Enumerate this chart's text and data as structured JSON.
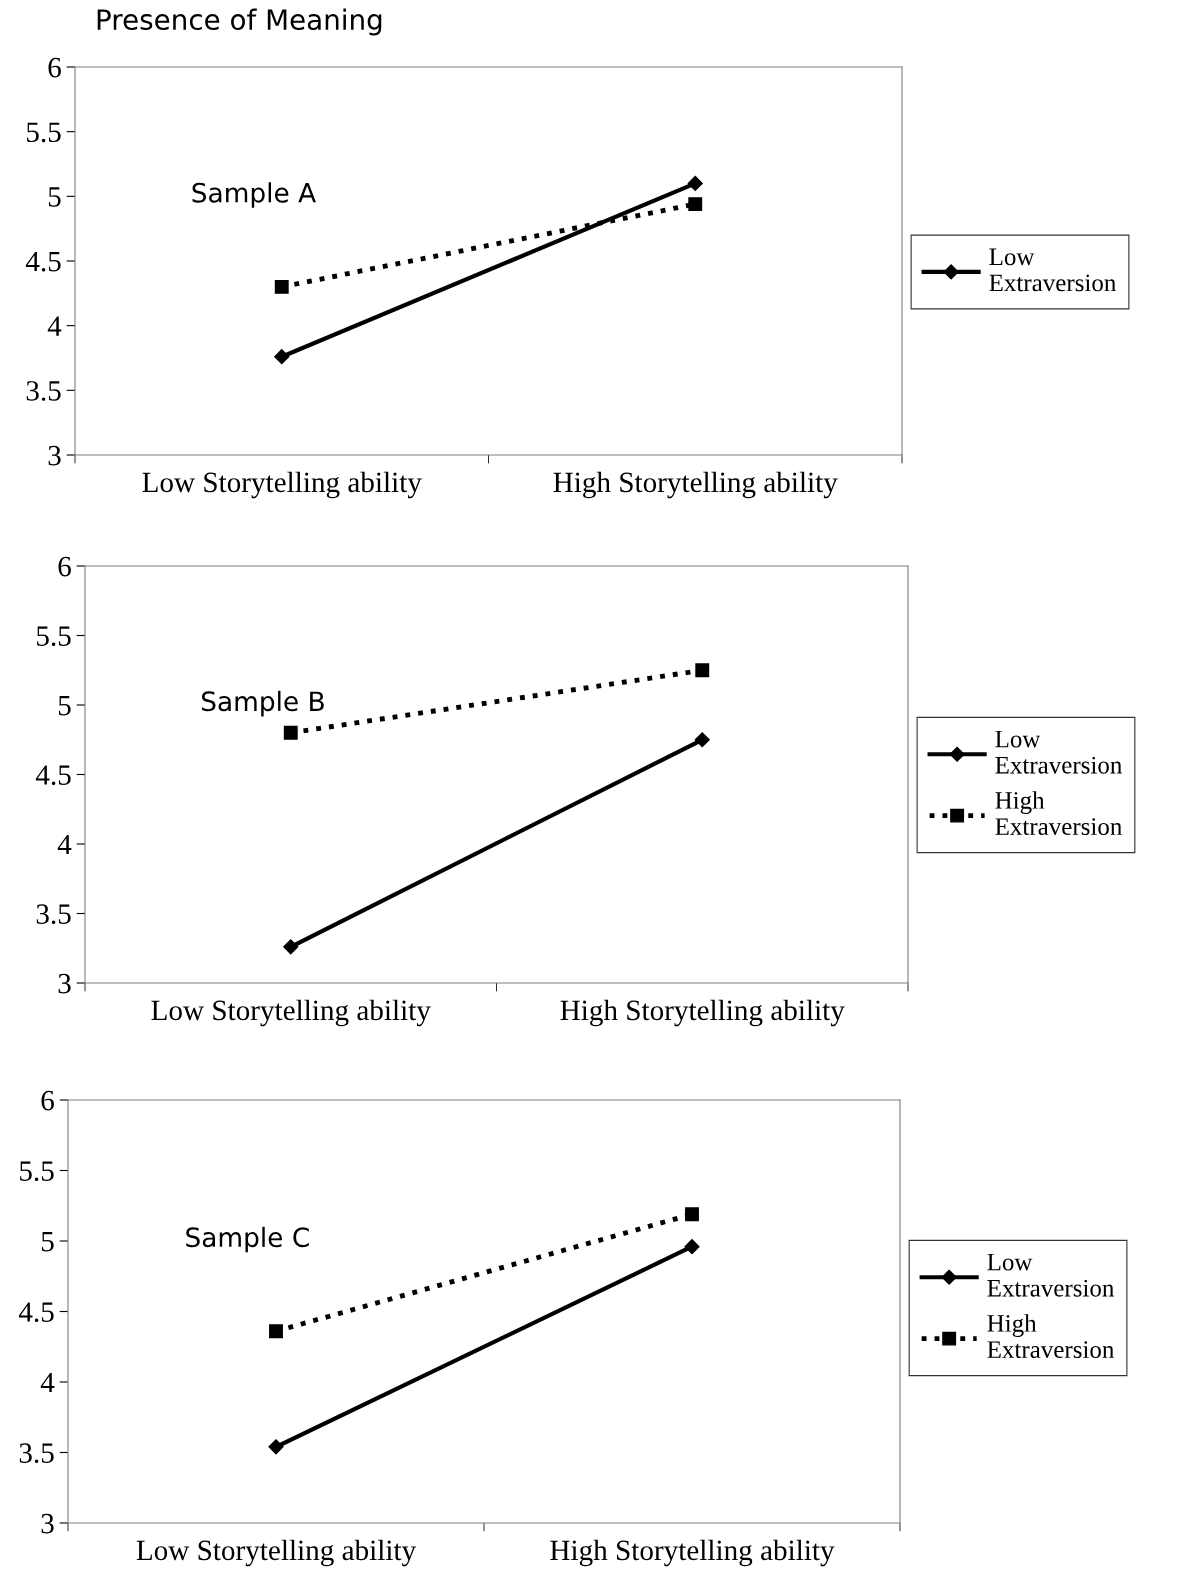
{
  "chart_data": [
    {
      "type": "line",
      "title": "Presence of Meaning",
      "annotations": [
        "Sample A"
      ],
      "categories": [
        "Low Storytelling ability",
        "High Storytelling ability"
      ],
      "ylim": [
        3,
        6
      ],
      "yticks": [
        3,
        3.5,
        4,
        4.5,
        5,
        5.5,
        6
      ],
      "legend": "right",
      "grid": false,
      "series": [
        {
          "name": "Low Extraversion",
          "color": "#000000",
          "values": [
            3.76,
            5.1
          ],
          "marker": "diamond",
          "line_style": "solid"
        },
        {
          "color": "#000000",
          "values": [
            4.3,
            4.94
          ],
          "marker": "square",
          "line_style": "dotted"
        }
      ]
    },
    {
      "type": "line",
      "annotations": [
        "Sample B"
      ],
      "categories": [
        "Low Storytelling ability",
        "High Storytelling ability"
      ],
      "ylim": [
        3,
        6
      ],
      "yticks": [
        3,
        3.5,
        4,
        4.5,
        5,
        5.5,
        6
      ],
      "legend": "right",
      "grid": false,
      "series": [
        {
          "name": "Low Extraversion",
          "color": "#000000",
          "values": [
            3.26,
            4.75
          ],
          "marker": "diamond",
          "line_style": "solid"
        },
        {
          "name": "High Extraversion",
          "color": "#000000",
          "values": [
            4.8,
            5.25
          ],
          "marker": "square",
          "line_style": "dotted"
        }
      ]
    },
    {
      "type": "line",
      "annotations": [
        "Sample C"
      ],
      "categories": [
        "Low Storytelling ability",
        "High Storytelling ability"
      ],
      "ylim": [
        3,
        6
      ],
      "yticks": [
        3,
        3.5,
        4,
        4.5,
        5,
        5.5,
        6
      ],
      "legend": "right",
      "grid": false,
      "series": [
        {
          "name": "Low Extraversion",
          "color": "#000000",
          "values": [
            3.54,
            4.96
          ],
          "marker": "diamond",
          "line_style": "solid"
        },
        {
          "name": "High Extraversion",
          "color": "#000000",
          "values": [
            4.36,
            5.19
          ],
          "marker": "square",
          "line_style": "dotted"
        }
      ]
    }
  ]
}
